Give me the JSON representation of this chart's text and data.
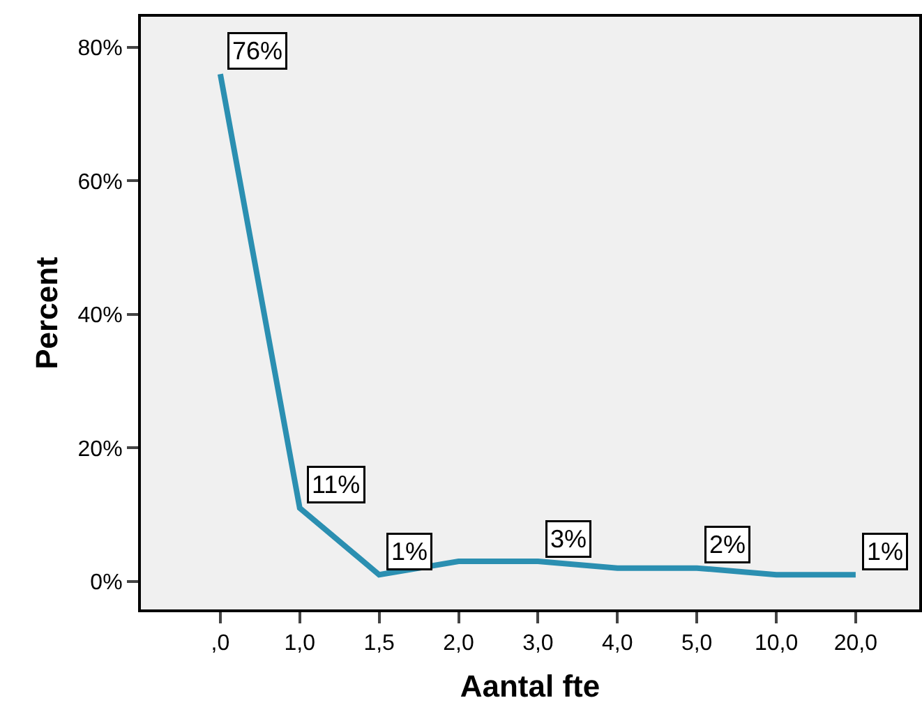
{
  "chart_data": {
    "type": "line",
    "xlabel": "Aantal fte",
    "ylabel": "Percent",
    "categories": [
      ",0",
      "1,0",
      "1,5",
      "2,0",
      "3,0",
      "4,0",
      "5,0",
      "10,0",
      "20,0"
    ],
    "series": [
      {
        "color": "#2b8fb1",
        "values": [
          76,
          11,
          1,
          3,
          3,
          2,
          2,
          1,
          1
        ],
        "value_labels": [
          "76%",
          "11%",
          "1%",
          null,
          "3%",
          null,
          "2%",
          null,
          "1%"
        ]
      }
    ],
    "ylim": [
      -4.2,
      84.6
    ],
    "yticks": [
      {
        "value": 0,
        "label": "0%"
      },
      {
        "value": 20,
        "label": "20%"
      },
      {
        "value": 40,
        "label": "40%"
      },
      {
        "value": 60,
        "label": "60%"
      },
      {
        "value": 80,
        "label": "80%"
      }
    ],
    "grid": false,
    "marker": "none",
    "line_style": "solid"
  }
}
